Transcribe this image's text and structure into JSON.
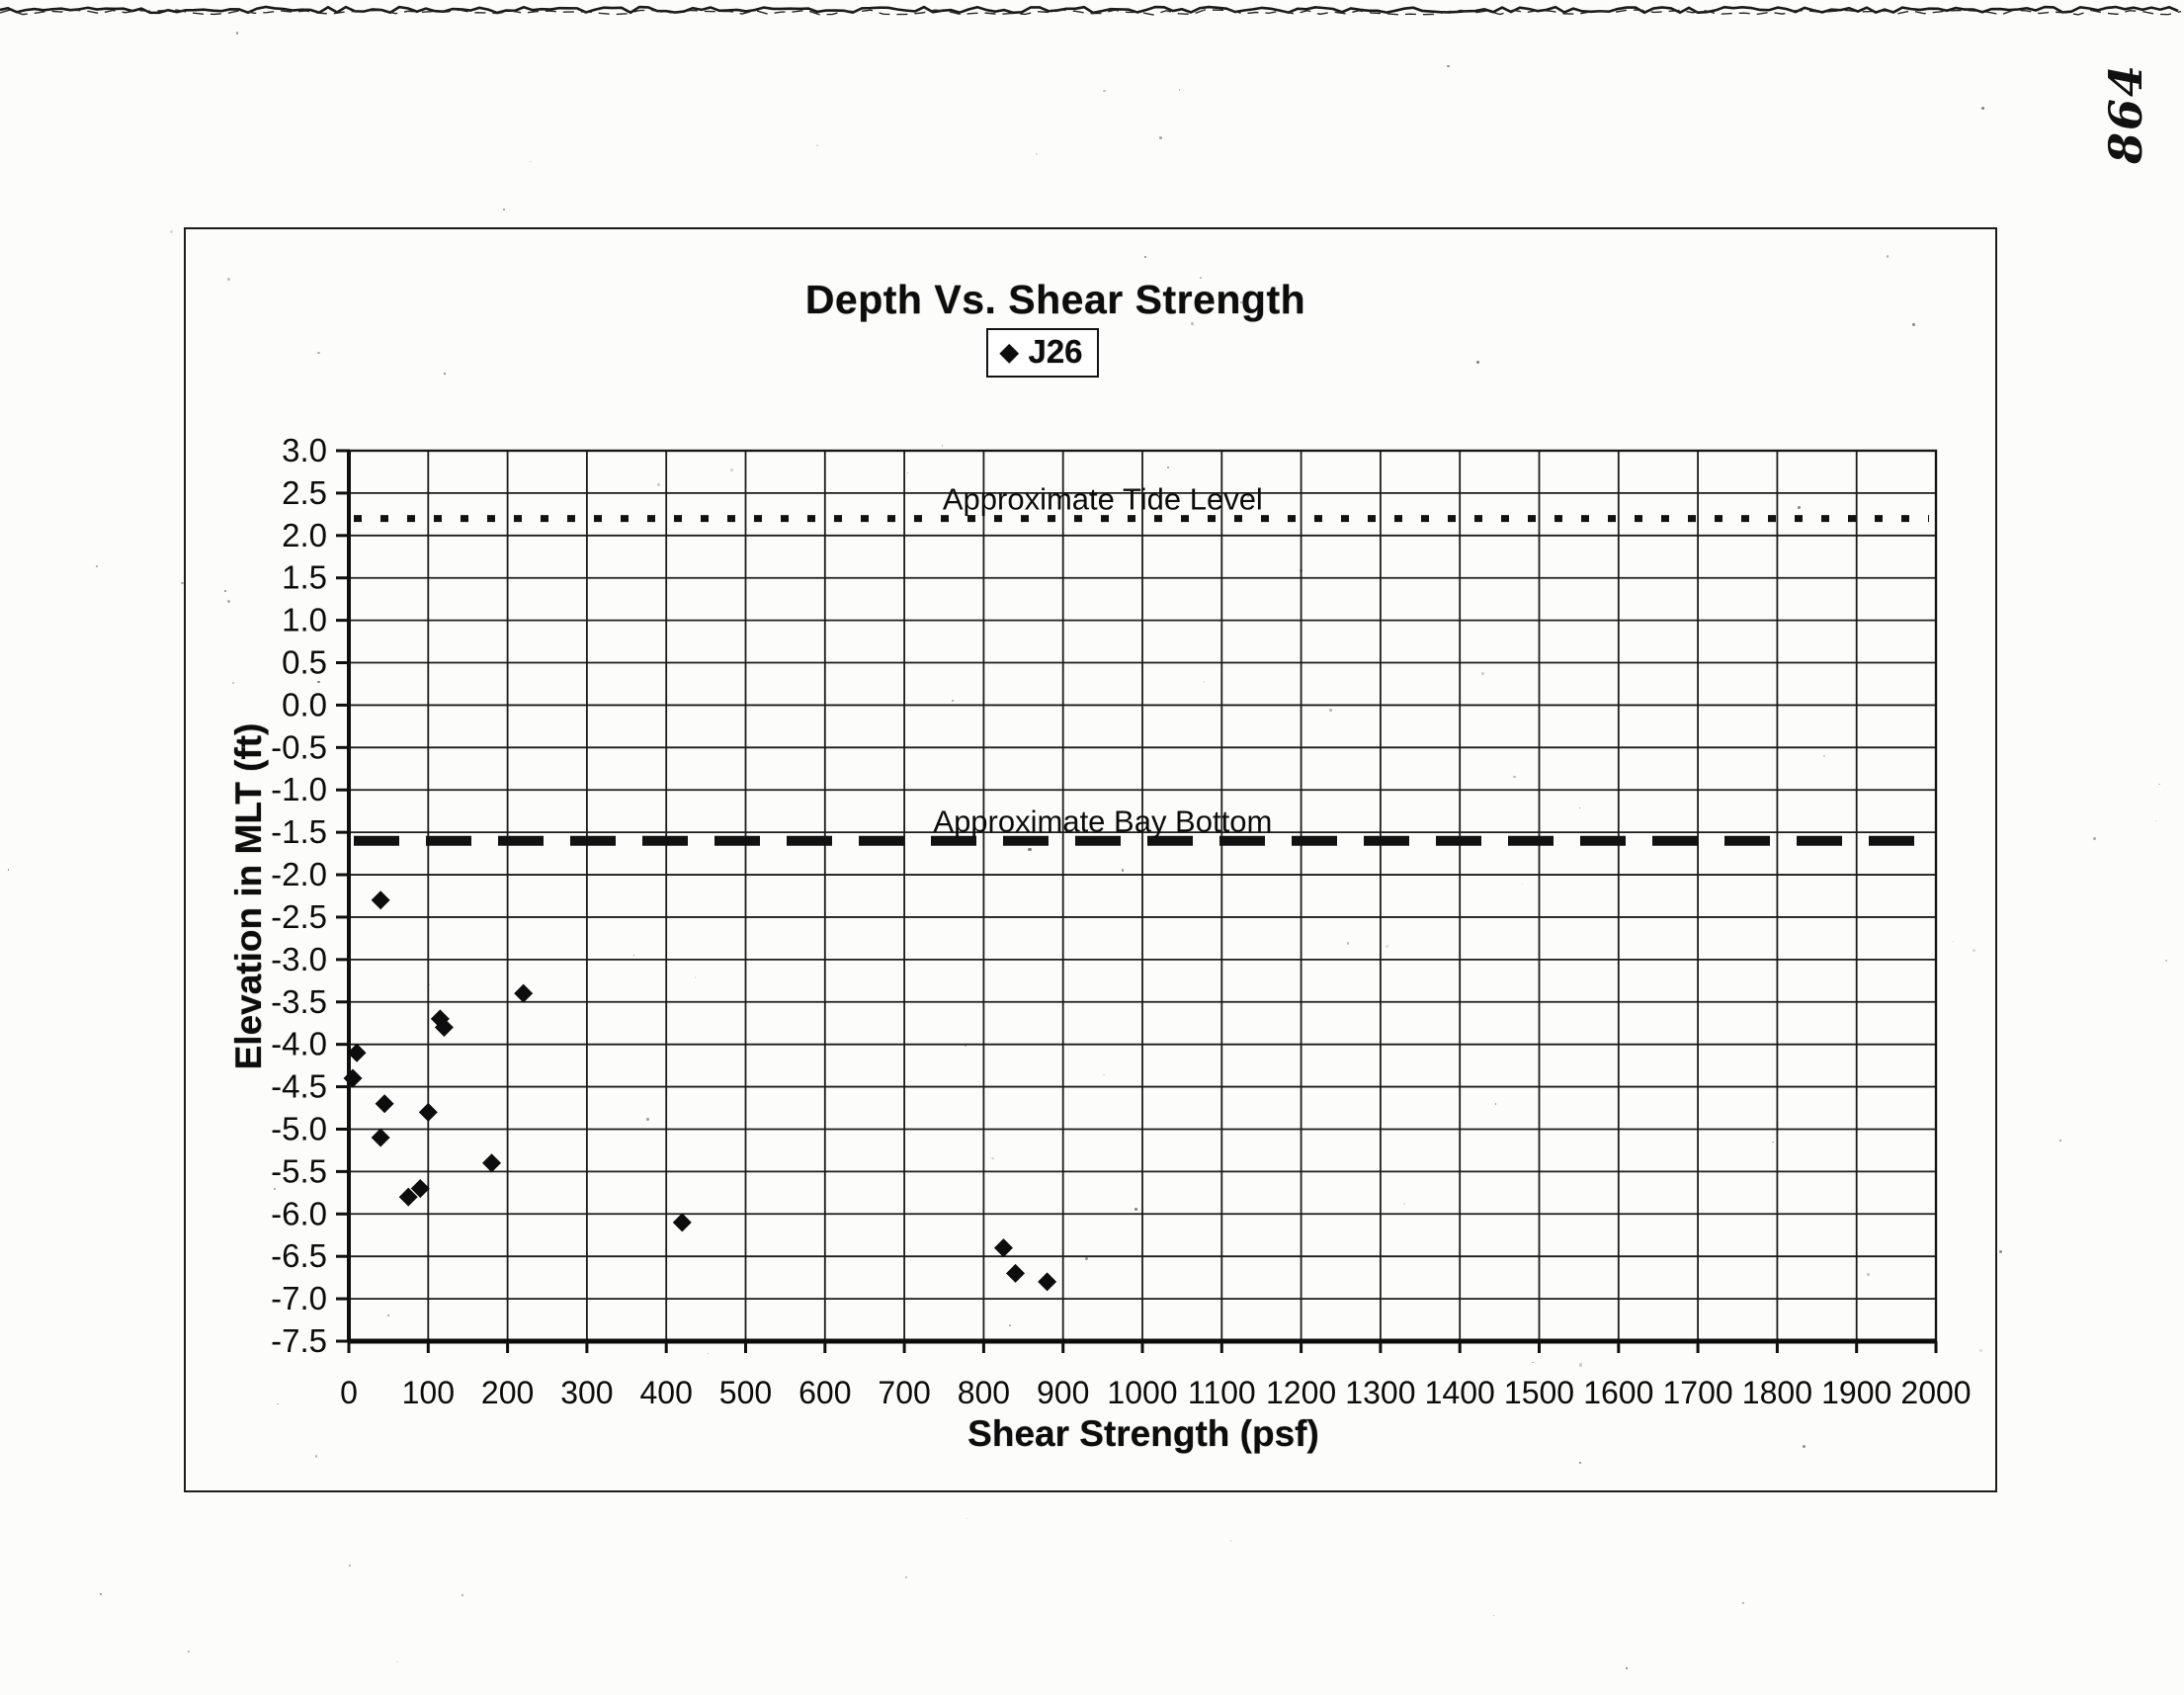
{
  "page": {
    "handwritten_number": "864"
  },
  "chart": {
    "title": "Depth Vs. Shear Strength",
    "legend": {
      "label": "J26",
      "marker": "diamond-icon"
    },
    "x_axis": {
      "label": "Shear Strength (psf)"
    },
    "y_axis": {
      "label": "Elevation in MLT (ft)"
    }
  },
  "chart_data": {
    "type": "scatter",
    "title": "Depth Vs. Shear Strength",
    "xlabel": "Shear Strength (psf)",
    "ylabel": "Elevation in MLT (ft)",
    "xlim": [
      0,
      2000
    ],
    "ylim": [
      -7.5,
      3.0
    ],
    "x_tick_step": 100,
    "y_tick_step": 0.5,
    "x_tick_labels": [
      "0",
      "100",
      "200",
      "300",
      "400",
      "500",
      "600",
      "700",
      "800",
      "900",
      "1000",
      "1100",
      "1200",
      "1300",
      "1400",
      "1500",
      "1600",
      "1700",
      "1800",
      "1900",
      "2000"
    ],
    "y_tick_labels": [
      "3.0",
      "2.5",
      "2.0",
      "1.5",
      "1.0",
      "0.5",
      "0.0",
      "-0.5",
      "-1.0",
      "-1.5",
      "-2.0",
      "-2.5",
      "-3.0",
      "-3.5",
      "-4.0",
      "-4.5",
      "-5.0",
      "-5.5",
      "-6.0",
      "-6.5",
      "-7.0",
      "-7.5"
    ],
    "grid": true,
    "legend_position": "top-center",
    "marker_color": "#0d0d0d",
    "series": [
      {
        "name": "J26",
        "marker": "diamond",
        "points": [
          [
            40,
            -2.3
          ],
          [
            220,
            -3.4
          ],
          [
            115,
            -3.7
          ],
          [
            120,
            -3.8
          ],
          [
            10,
            -4.1
          ],
          [
            5,
            -4.4
          ],
          [
            45,
            -4.7
          ],
          [
            100,
            -4.8
          ],
          [
            40,
            -5.1
          ],
          [
            180,
            -5.4
          ],
          [
            90,
            -5.7
          ],
          [
            75,
            -5.8
          ],
          [
            420,
            -6.1
          ],
          [
            825,
            -6.4
          ],
          [
            840,
            -6.7
          ],
          [
            880,
            -6.8
          ]
        ]
      }
    ],
    "reference_lines": [
      {
        "label": "Approximate Tide Level",
        "y": 2.2,
        "style": "dotted",
        "label_x": 950
      },
      {
        "label": "Approximate Bay Bottom",
        "y": -1.6,
        "style": "dashed",
        "label_x": 950
      }
    ]
  }
}
